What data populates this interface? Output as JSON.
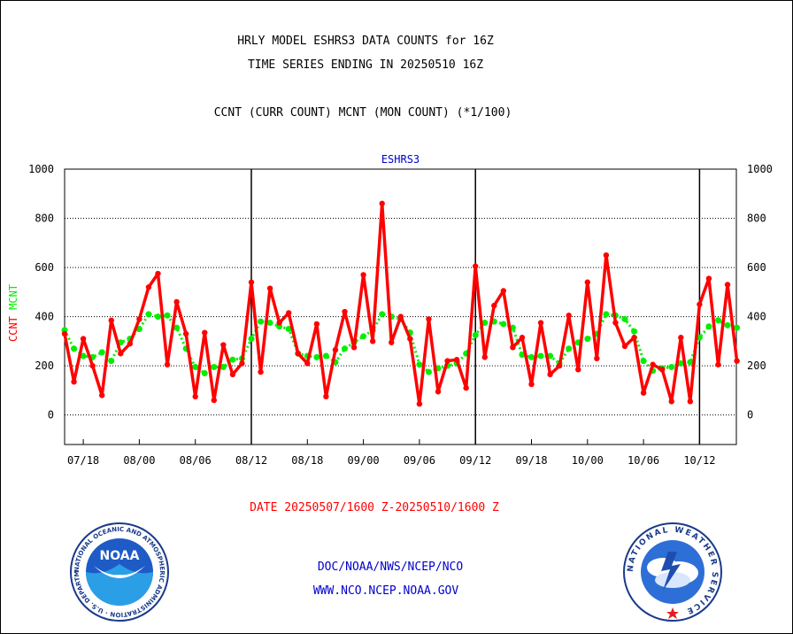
{
  "header": {
    "title_line1": "HRLY MODEL ESHRS3 DATA COUNTS for 16Z",
    "title_line2": "TIME SERIES ENDING IN 20250510 16Z",
    "subtitle": "CCNT (CURR COUNT) MCNT (MON COUNT) (*1/100)"
  },
  "footer": {
    "date_range": "DATE 20250507/1600 Z-20250510/1600 Z",
    "org": "DOC/NOAA/NWS/NCEP/NCO",
    "url": "WWW.NCO.NCEP.NOAA.GOV"
  },
  "logos": {
    "noaa_text": "NOAA",
    "noaa_ring_text": "NATIONAL OCEANIC AND ATMOSPHERIC ADMINISTRATION · U.S. DEPARTMENT OF COMMERCE ·",
    "nws_ring_text": "NATIONAL WEATHER SERVICE"
  },
  "colors": {
    "ccnt": "#ff0000",
    "mcnt": "#00ee00",
    "axis": "#000000",
    "panel_label": "#0000cc",
    "footer_text": "#0000cc",
    "date_text": "#ff0000"
  },
  "chart_data": {
    "type": "line",
    "panel_label": "ESHRS3",
    "ylabel_series": [
      "CCNT",
      "MCNT"
    ],
    "ylim": [
      -120,
      1000
    ],
    "yticks": [
      0,
      200,
      400,
      600,
      800,
      1000
    ],
    "grid": true,
    "x_tick_labels": [
      "07/18",
      "08/00",
      "08/06",
      "08/12",
      "08/18",
      "09/00",
      "09/06",
      "09/12",
      "09/18",
      "10/00",
      "10/06",
      "10/12"
    ],
    "day_boundaries": [
      "08/12",
      "09/12",
      "10/12"
    ],
    "series": [
      {
        "name": "CCNT",
        "values": [
          330,
          135,
          310,
          200,
          80,
          385,
          250,
          290,
          390,
          520,
          575,
          205,
          460,
          330,
          75,
          335,
          60,
          285,
          165,
          210,
          540,
          175,
          515,
          375,
          415,
          250,
          210,
          370,
          75,
          265,
          420,
          275,
          570,
          300,
          860,
          295,
          400,
          310,
          45,
          390,
          95,
          220,
          225,
          110,
          605,
          235,
          445,
          505,
          275,
          315,
          125,
          375,
          165,
          200,
          405,
          185,
          540,
          230,
          650,
          375,
          280,
          315,
          90,
          205,
          185,
          55,
          315,
          55,
          450,
          555,
          205,
          530,
          220
        ]
      },
      {
        "name": "MCNT",
        "values": [
          345,
          270,
          240,
          235,
          255,
          220,
          295,
          310,
          350,
          410,
          400,
          405,
          355,
          270,
          195,
          170,
          195,
          195,
          225,
          230,
          310,
          380,
          375,
          360,
          350,
          250,
          240,
          235,
          240,
          215,
          270,
          295,
          320,
          345,
          410,
          400,
          390,
          335,
          205,
          175,
          190,
          200,
          210,
          250,
          325,
          375,
          380,
          370,
          355,
          245,
          235,
          240,
          240,
          210,
          270,
          295,
          310,
          330,
          410,
          405,
          390,
          340,
          220,
          180,
          190,
          195,
          210,
          215,
          315,
          360,
          385,
          365,
          355
        ]
      }
    ]
  }
}
